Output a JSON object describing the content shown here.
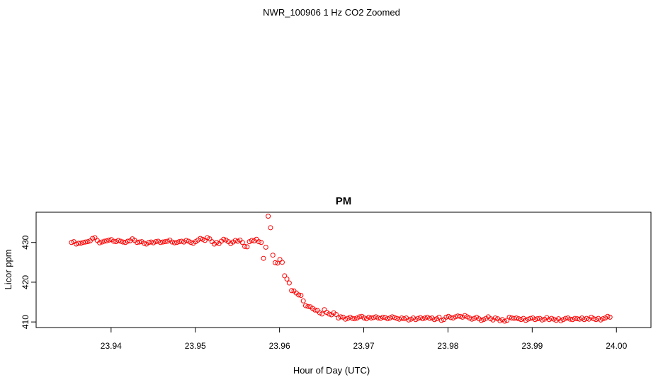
{
  "page_title": "NWR_100906  1 Hz CO2 Zoomed",
  "chart_data": {
    "type": "scatter",
    "title": "PM",
    "xlabel": "Hour of Day (UTC)",
    "ylabel": "Licor ppm",
    "xlim": [
      23.9311,
      24.0041
    ],
    "ylim": [
      408.6,
      437.6
    ],
    "x_ticks": [
      "23.94",
      "23.95",
      "23.96",
      "23.97",
      "23.98",
      "23.99",
      "24.00"
    ],
    "x_tick_values": [
      23.94,
      23.95,
      23.96,
      23.97,
      23.98,
      23.99,
      24.0
    ],
    "y_ticks": [
      "410",
      "420",
      "430"
    ],
    "y_tick_values": [
      410,
      420,
      430
    ],
    "grid": false,
    "marker": "open-circle",
    "color": "#ff0000",
    "x_start": 23.9353,
    "x_step": 0.000278,
    "values": [
      430.0,
      430.2,
      429.6,
      429.8,
      429.8,
      430.0,
      430.1,
      430.2,
      430.4,
      431.0,
      431.2,
      430.5,
      429.9,
      430.1,
      430.3,
      430.4,
      430.6,
      430.7,
      430.3,
      430.2,
      430.5,
      430.3,
      430.1,
      430.0,
      430.3,
      430.4,
      430.9,
      430.5,
      430.0,
      430.1,
      430.2,
      429.8,
      429.6,
      430.0,
      430.1,
      429.9,
      430.2,
      430.3,
      430.0,
      430.1,
      430.2,
      430.3,
      430.6,
      430.1,
      429.9,
      430.0,
      430.2,
      430.3,
      430.1,
      430.5,
      430.3,
      430.0,
      429.8,
      430.2,
      430.6,
      431.0,
      430.8,
      430.5,
      431.2,
      430.9,
      430.2,
      429.6,
      430.0,
      429.7,
      430.3,
      430.8,
      430.6,
      430.2,
      429.7,
      430.1,
      430.5,
      430.3,
      430.6,
      430.0,
      429.0,
      428.9,
      430.2,
      430.5,
      430.4,
      430.8,
      430.2,
      430.0,
      426.0,
      428.8,
      436.6,
      433.7,
      426.8,
      424.9,
      424.8,
      425.7,
      425.0,
      421.6,
      420.8,
      419.8,
      417.9,
      417.8,
      417.3,
      416.8,
      416.7,
      415.3,
      414.1,
      413.9,
      413.8,
      413.4,
      413.0,
      412.9,
      412.3,
      412.0,
      413.1,
      412.4,
      412.0,
      411.8,
      412.3,
      411.9,
      411.0,
      411.3,
      411.2,
      410.7,
      410.9,
      411.2,
      410.9,
      410.8,
      411.0,
      411.3,
      411.4,
      411.0,
      410.8,
      411.2,
      411.0,
      411.1,
      411.3,
      411.0,
      410.9,
      411.2,
      411.1,
      410.8,
      411.0,
      411.3,
      411.1,
      410.9,
      410.7,
      411.0,
      410.8,
      411.0,
      410.5,
      410.7,
      411.0,
      410.6,
      410.9,
      411.1,
      410.8,
      411.0,
      411.2,
      410.9,
      411.0,
      410.6,
      410.8,
      411.2,
      410.4,
      410.6,
      411.2,
      411.4,
      411.1,
      411.0,
      411.3,
      411.5,
      411.4,
      411.2,
      411.6,
      411.3,
      411.0,
      410.7,
      410.9,
      411.2,
      410.8,
      410.4,
      410.6,
      410.9,
      411.3,
      410.8,
      410.5,
      411.0,
      410.8,
      410.3,
      410.6,
      410.2,
      410.4,
      411.2,
      411.0,
      410.9,
      411.0,
      410.8,
      410.6,
      410.9,
      410.4,
      410.7,
      410.9,
      411.0,
      410.6,
      410.8,
      410.9,
      410.5,
      410.7,
      411.1,
      410.6,
      410.9,
      410.7,
      410.4,
      410.8,
      410.3,
      410.6,
      410.9,
      411.0,
      410.7,
      410.6,
      410.9,
      410.8,
      410.7,
      411.0,
      410.6,
      410.9,
      410.7,
      411.2,
      410.8,
      410.6,
      410.9,
      410.5,
      410.8,
      411.0,
      411.4,
      411.2
    ]
  }
}
